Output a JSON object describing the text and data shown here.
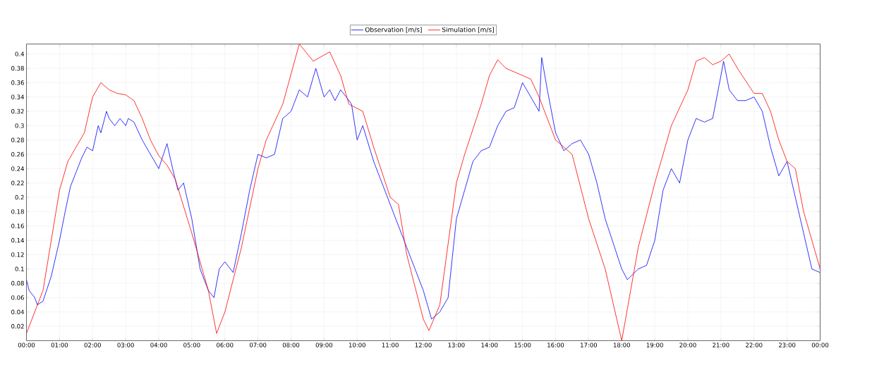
{
  "chart_data": {
    "type": "line",
    "legend": "top",
    "grid": true,
    "line_style": "solid",
    "marker": "none",
    "xlim": [
      0,
      24
    ],
    "ylim": [
      0,
      0.414
    ],
    "xticks": [
      {
        "value": 0,
        "label": "00:00"
      },
      {
        "value": 1,
        "label": "01:00"
      },
      {
        "value": 2,
        "label": "02:00"
      },
      {
        "value": 3,
        "label": "03:00"
      },
      {
        "value": 4,
        "label": "04:00"
      },
      {
        "value": 5,
        "label": "05:00"
      },
      {
        "value": 6,
        "label": "06:00"
      },
      {
        "value": 7,
        "label": "07:00"
      },
      {
        "value": 8,
        "label": "08:00"
      },
      {
        "value": 9,
        "label": "09:00"
      },
      {
        "value": 10,
        "label": "10:00"
      },
      {
        "value": 11,
        "label": "11:00"
      },
      {
        "value": 12,
        "label": "12:00"
      },
      {
        "value": 13,
        "label": "13:00"
      },
      {
        "value": 14,
        "label": "14:00"
      },
      {
        "value": 15,
        "label": "15:00"
      },
      {
        "value": 16,
        "label": "16:00"
      },
      {
        "value": 17,
        "label": "17:00"
      },
      {
        "value": 18,
        "label": "18:00"
      },
      {
        "value": 19,
        "label": "19:00"
      },
      {
        "value": 20,
        "label": "20:00"
      },
      {
        "value": 21,
        "label": "21:00"
      },
      {
        "value": 22,
        "label": "22:00"
      },
      {
        "value": 23,
        "label": "23:00"
      },
      {
        "value": 24,
        "label": "00:00"
      }
    ],
    "yticks": [
      0.02,
      0.04,
      0.06,
      0.08,
      0.1,
      0.12,
      0.14,
      0.16,
      0.18,
      0.2,
      0.22,
      0.24,
      0.26,
      0.28,
      0.3,
      0.32,
      0.34,
      0.36,
      0.38,
      0.4
    ],
    "series": [
      {
        "name": "Observation [m/s]",
        "color": "#0000ff",
        "x": [
          0,
          0.08,
          0.25,
          0.33,
          0.5,
          0.75,
          1,
          1.17,
          1.33,
          1.5,
          1.67,
          1.83,
          2,
          2.17,
          2.25,
          2.42,
          2.5,
          2.67,
          2.83,
          3,
          3.08,
          3.25,
          3.5,
          3.75,
          4,
          4.25,
          4.42,
          4.58,
          4.75,
          5,
          5.25,
          5.5,
          5.67,
          5.83,
          6,
          6.25,
          6.5,
          6.75,
          7,
          7.25,
          7.5,
          7.75,
          8,
          8.25,
          8.5,
          8.75,
          9,
          9.17,
          9.33,
          9.5,
          9.67,
          9.83,
          10,
          10.17,
          10.5,
          10.75,
          11,
          11.25,
          11.5,
          11.75,
          12,
          12.25,
          12.5,
          12.75,
          13,
          13.25,
          13.5,
          13.75,
          14,
          14.25,
          14.5,
          14.75,
          15,
          15.25,
          15.5,
          15.58,
          15.75,
          16,
          16.25,
          16.5,
          16.75,
          17,
          17.25,
          17.5,
          17.75,
          18,
          18.17,
          18.5,
          18.75,
          19,
          19.25,
          19.5,
          19.75,
          20,
          20.25,
          20.5,
          20.75,
          21,
          21.08,
          21.25,
          21.5,
          21.75,
          22,
          22.25,
          22.5,
          22.75,
          23,
          23.25,
          23.5,
          23.75,
          24
        ],
        "values": [
          0.085,
          0.07,
          0.06,
          0.05,
          0.055,
          0.09,
          0.14,
          0.18,
          0.215,
          0.235,
          0.255,
          0.27,
          0.265,
          0.3,
          0.29,
          0.32,
          0.31,
          0.3,
          0.31,
          0.3,
          0.31,
          0.305,
          0.28,
          0.26,
          0.24,
          0.275,
          0.24,
          0.21,
          0.22,
          0.17,
          0.1,
          0.07,
          0.06,
          0.1,
          0.11,
          0.095,
          0.15,
          0.21,
          0.26,
          0.255,
          0.26,
          0.31,
          0.32,
          0.35,
          0.34,
          0.38,
          0.34,
          0.35,
          0.335,
          0.35,
          0.34,
          0.33,
          0.28,
          0.3,
          0.25,
          0.22,
          0.19,
          0.16,
          0.13,
          0.1,
          0.07,
          0.03,
          0.04,
          0.06,
          0.17,
          0.21,
          0.25,
          0.265,
          0.27,
          0.3,
          0.32,
          0.325,
          0.36,
          0.34,
          0.32,
          0.395,
          0.35,
          0.29,
          0.265,
          0.275,
          0.28,
          0.26,
          0.22,
          0.17,
          0.135,
          0.1,
          0.085,
          0.1,
          0.105,
          0.14,
          0.21,
          0.24,
          0.22,
          0.28,
          0.31,
          0.305,
          0.31,
          0.37,
          0.39,
          0.35,
          0.335,
          0.335,
          0.34,
          0.32,
          0.27,
          0.23,
          0.25,
          0.2,
          0.15,
          0.1,
          0.095
        ]
      },
      {
        "name": "Simulation [m/s]",
        "color": "#ff0000",
        "x": [
          0,
          0.5,
          1,
          1.25,
          1.5,
          1.75,
          2,
          2.25,
          2.5,
          2.75,
          3,
          3.25,
          3.5,
          3.75,
          4,
          4.25,
          4.5,
          5,
          5.5,
          5.75,
          6,
          6.5,
          7,
          7.25,
          7.75,
          8.25,
          8.67,
          9.17,
          9.5,
          9.75,
          10.17,
          10.5,
          11,
          11.25,
          11.5,
          12,
          12.17,
          12.5,
          13,
          13.25,
          13.75,
          14,
          14.25,
          14.5,
          15,
          15.25,
          15.5,
          16,
          16.5,
          17,
          17.5,
          18,
          18.5,
          19,
          19.5,
          20,
          20.25,
          20.5,
          20.75,
          21,
          21.25,
          21.5,
          22,
          22.25,
          22.5,
          22.75,
          23,
          23.25,
          23.5,
          24
        ],
        "values": [
          0.01,
          0.07,
          0.21,
          0.25,
          0.27,
          0.29,
          0.34,
          0.36,
          0.35,
          0.345,
          0.343,
          0.335,
          0.31,
          0.28,
          0.258,
          0.245,
          0.225,
          0.15,
          0.07,
          0.01,
          0.04,
          0.13,
          0.24,
          0.28,
          0.33,
          0.414,
          0.39,
          0.403,
          0.37,
          0.33,
          0.32,
          0.27,
          0.2,
          0.19,
          0.12,
          0.03,
          0.014,
          0.05,
          0.22,
          0.26,
          0.33,
          0.37,
          0.392,
          0.38,
          0.37,
          0.365,
          0.34,
          0.28,
          0.26,
          0.17,
          0.1,
          0.0,
          0.13,
          0.22,
          0.3,
          0.35,
          0.39,
          0.395,
          0.385,
          0.39,
          0.4,
          0.38,
          0.345,
          0.345,
          0.32,
          0.28,
          0.25,
          0.24,
          0.18,
          0.1
        ]
      }
    ]
  }
}
